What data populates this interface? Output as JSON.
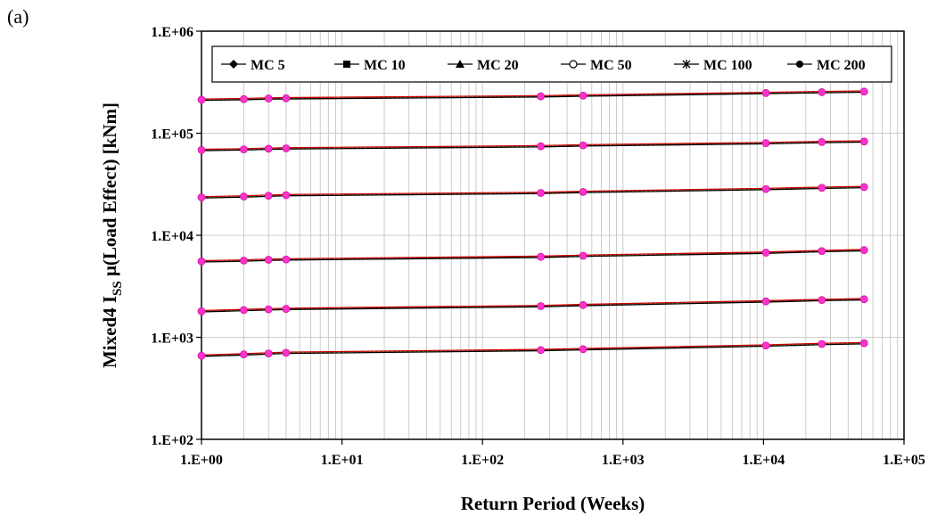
{
  "panel_label": "(a)",
  "chart_data": {
    "type": "line",
    "x_scale": "log",
    "y_scale": "log",
    "xlim": [
      1,
      100000
    ],
    "ylim": [
      100,
      1000000
    ],
    "x_ticks": [
      "1.E+00",
      "1.E+01",
      "1.E+02",
      "1.E+03",
      "1.E+04",
      "1.E+05"
    ],
    "y_ticks": [
      "1.E+02",
      "1.E+03",
      "1.E+04",
      "1.E+05",
      "1.E+06"
    ],
    "xlabel": "Return Period (Weeks)",
    "ylabel_parts": {
      "pre": "Mixed4 I",
      "sub": "SS",
      "post": " μ(Load Effect) [kNm]"
    },
    "grid": true,
    "legend_position": "top",
    "legend": [
      {
        "name": "MC 5",
        "marker": "diamond"
      },
      {
        "name": "MC 10",
        "marker": "square"
      },
      {
        "name": "MC 20",
        "marker": "triangle"
      },
      {
        "name": "MC 50",
        "marker": "circle-open"
      },
      {
        "name": "MC 100",
        "marker": "star"
      },
      {
        "name": "MC 200",
        "marker": "circle"
      }
    ],
    "x": [
      1,
      2,
      3,
      4,
      260,
      520,
      10400,
      26000,
      52000
    ],
    "groups": [
      {
        "values": [
          660,
          680,
          695,
          705,
          750,
          765,
          830,
          860,
          875
        ]
      },
      {
        "values": [
          1800,
          1850,
          1880,
          1900,
          2020,
          2070,
          2250,
          2320,
          2360
        ]
      },
      {
        "values": [
          5550,
          5650,
          5750,
          5800,
          6150,
          6300,
          6750,
          7000,
          7150
        ]
      },
      {
        "values": [
          23500,
          24000,
          24400,
          24700,
          26000,
          26600,
          28400,
          29200,
          29700
        ]
      },
      {
        "values": [
          68500,
          69500,
          70500,
          71000,
          74500,
          76000,
          80000,
          82000,
          83000
        ]
      },
      {
        "values": [
          213000,
          216000,
          219000,
          220000,
          230000,
          234000,
          248000,
          253000,
          256000
        ]
      }
    ],
    "colors": {
      "line_a": "#000000",
      "line_b": "#cc0000",
      "line_c": "#33aa33",
      "points": "#ff33cc",
      "grid": "#bfbfbf"
    }
  }
}
